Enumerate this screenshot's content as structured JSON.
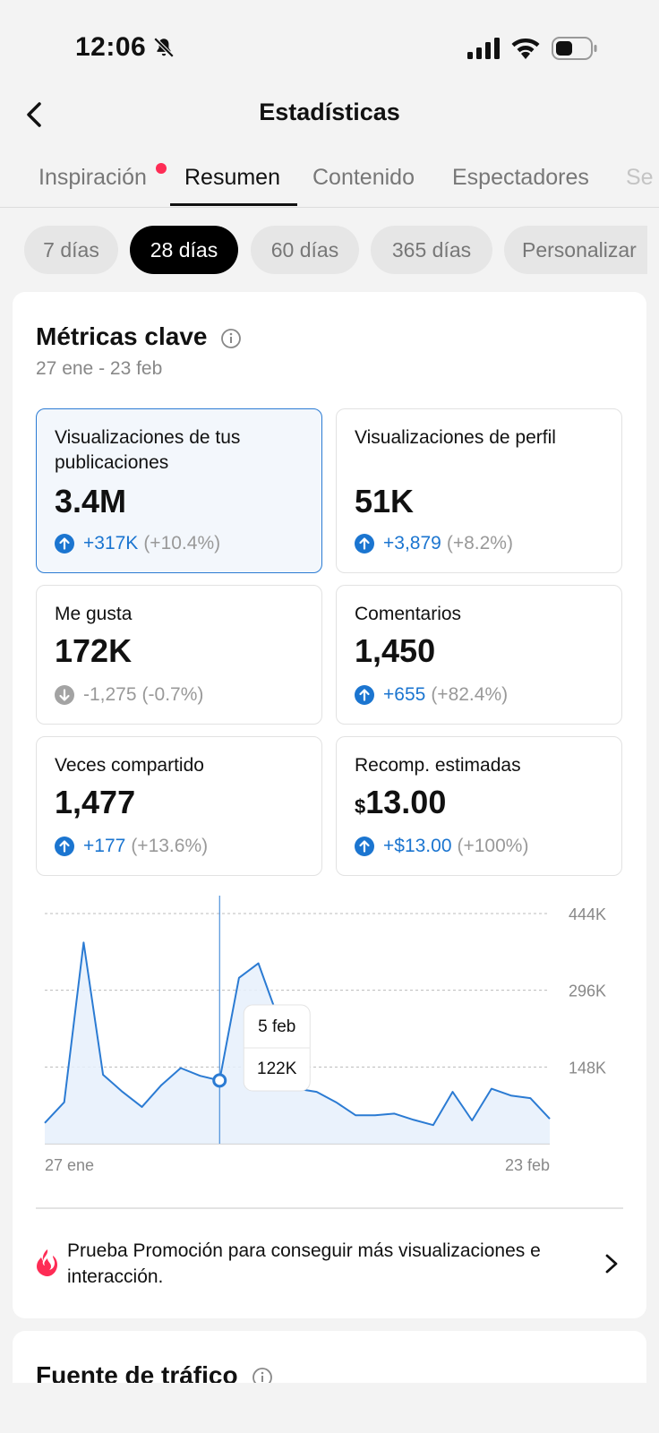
{
  "status_bar": {
    "time": "12:06"
  },
  "header": {
    "title": "Estadísticas"
  },
  "tabs": [
    {
      "label": "Inspiración"
    },
    {
      "label": "Resumen"
    },
    {
      "label": "Contenido"
    },
    {
      "label": "Espectadores"
    },
    {
      "label": "Se"
    }
  ],
  "periods": [
    "7 días",
    "28 días",
    "60 días",
    "365 días",
    "Personalizar"
  ],
  "key_metrics": {
    "title": "Métricas clave",
    "date_range": "27 ene - 23 feb",
    "cards": [
      {
        "label": "Visualizaciones de tus publicaciones",
        "value": "3.4M",
        "delta": "+317K",
        "pct": "(+10.4%)",
        "trend": "up",
        "selected": true
      },
      {
        "label": "Visualizaciones de perfil",
        "value": "51K",
        "delta": "+3,879",
        "pct": "(+8.2%)",
        "trend": "up"
      },
      {
        "label": "Me gusta",
        "value": "172K",
        "delta": "-1,275",
        "pct": "(-0.7%)",
        "trend": "down"
      },
      {
        "label": "Comentarios",
        "value": "1,450",
        "delta": "+655",
        "pct": "(+82.4%)",
        "trend": "up"
      },
      {
        "label": "Veces compartido",
        "value": "1,477",
        "delta": "+177",
        "pct": "(+13.6%)",
        "trend": "up"
      },
      {
        "label": "Recomp. estimadas",
        "currency": "$",
        "value": "13.00",
        "delta": "+$13.00",
        "pct": "(+100%)",
        "trend": "up"
      }
    ]
  },
  "chart_data": {
    "type": "area",
    "x_start_label": "27 ene",
    "x_end_label": "23 feb",
    "y_ticks": [
      "444K",
      "296K",
      "148K"
    ],
    "ylim": [
      0,
      444
    ],
    "series": [
      {
        "values": [
          40,
          80,
          388,
          133,
          100,
          71,
          113,
          146,
          131,
          122,
          320,
          348,
          244,
          106,
          100,
          80,
          55,
          55,
          58,
          46,
          36,
          100,
          45,
          106,
          93,
          88,
          48
        ]
      }
    ],
    "tooltip": {
      "date": "5 feb",
      "value": "122K",
      "index": 9
    },
    "colors": {
      "line": "#2b7bd3",
      "fill": "#e6f0fb"
    }
  },
  "promo": {
    "text": "Prueba Promoción para conseguir más visualizaciones e interacción."
  },
  "traffic": {
    "title": "Fuente de tráfico"
  }
}
